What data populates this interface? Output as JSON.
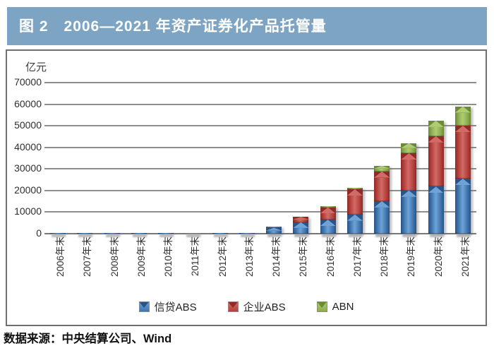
{
  "header": {
    "title": "图 2　2006—2021 年资产证券化产品托管量"
  },
  "footer": {
    "source": "数据来源：中央结算公司、Wind"
  },
  "colors": {
    "titlebar": "#7da5c3",
    "series_blue": "#3e74ad",
    "series_red": "#b5403c",
    "series_green": "#8cac4f",
    "gridline": "#8e8e8e"
  },
  "chart_data": {
    "type": "bar",
    "stacked": true,
    "title": "图 2　2006—2021 年资产证券化产品托管量",
    "unit_label": "亿元",
    "xlabel": "",
    "ylabel": "亿元",
    "ylim": [
      0,
      70000
    ],
    "yticks": [
      0,
      10000,
      20000,
      30000,
      40000,
      50000,
      60000,
      70000
    ],
    "grid": true,
    "legend_position": "bottom",
    "categories": [
      "2006年末",
      "2007年末",
      "2008年末",
      "2009年末",
      "2010年末",
      "2011年末",
      "2012年末",
      "2013年末",
      "2014年末",
      "2015年末",
      "2016年末",
      "2017年末",
      "2018年末",
      "2019年末",
      "2020年末",
      "2021年末"
    ],
    "series": [
      {
        "name": "信贷ABS",
        "color": "#3e74ad",
        "light": "#6fa3d8",
        "dark": "#2a5486",
        "values": [
          200,
          300,
          400,
          300,
          200,
          100,
          300,
          300,
          2800,
          5300,
          6500,
          8900,
          15100,
          20000,
          21800,
          25500
        ]
      },
      {
        "name": "企业ABS",
        "color": "#b5403c",
        "light": "#d16b66",
        "dark": "#8e2b28",
        "values": [
          0,
          0,
          0,
          0,
          0,
          0,
          0,
          100,
          300,
          2500,
          5700,
          11700,
          13800,
          17300,
          23400,
          24500
        ]
      },
      {
        "name": "ABN",
        "color": "#8cac4f",
        "light": "#b0cc72",
        "dark": "#6d8b37",
        "values": [
          0,
          0,
          0,
          0,
          0,
          0,
          0,
          0,
          100,
          200,
          400,
          600,
          2600,
          4700,
          7200,
          9000
        ]
      }
    ]
  }
}
